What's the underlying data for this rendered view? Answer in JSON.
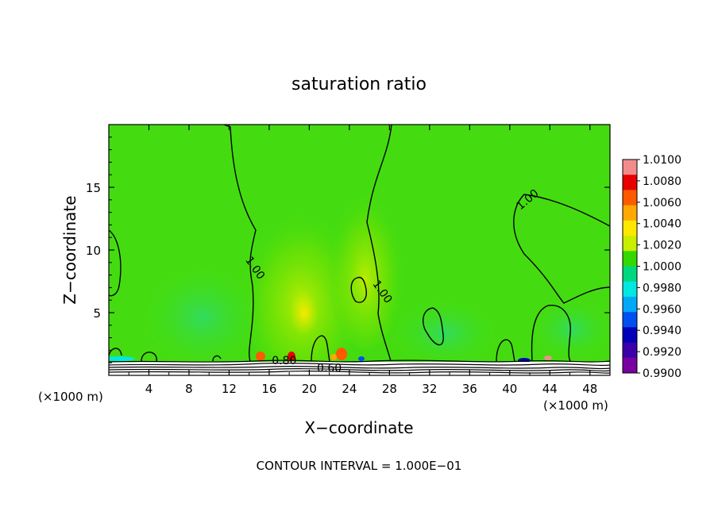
{
  "chart_data": {
    "type": "heatmap",
    "title": "saturation ratio",
    "xlabel": "X−coordinate",
    "ylabel": "Z−coordinate",
    "x_unit": "(×1000 m)",
    "z_unit": "(×1000 m)",
    "footer": "CONTOUR INTERVAL = 1.000E−01",
    "xlim": [
      0,
      50
    ],
    "ylim": [
      0,
      20
    ],
    "x_ticks": [
      4,
      8,
      12,
      16,
      20,
      24,
      28,
      32,
      36,
      40,
      44,
      48
    ],
    "y_ticks": [
      5,
      10,
      15
    ],
    "contour_labels": [
      {
        "text": "1.00",
        "x": 14.3,
        "y": 8.4
      },
      {
        "text": "1.00",
        "x": 27.0,
        "y": 6.5
      },
      {
        "text": "1.00",
        "x": 42.0,
        "y": 13.8
      },
      {
        "text": "0.80",
        "x": 17.5,
        "y": 0.9
      },
      {
        "text": "0.60",
        "x": 22.0,
        "y": 0.3
      }
    ],
    "colorbar": {
      "levels": [
        "1.0100",
        "1.0080",
        "1.0060",
        "1.0040",
        "1.0020",
        "1.0000",
        "0.9980",
        "0.9960",
        "0.9940",
        "0.9920",
        "0.9900"
      ],
      "colors": [
        "#f28c8c",
        "#e80000",
        "#ff5a00",
        "#ffa800",
        "#ffe800",
        "#c8ee00",
        "#34d800",
        "#00d880",
        "#00e8e0",
        "#00a8f8",
        "#0050f0",
        "#0000b8",
        "#3c00a8",
        "#7800a0"
      ]
    },
    "background_color": "#44dc10"
  }
}
